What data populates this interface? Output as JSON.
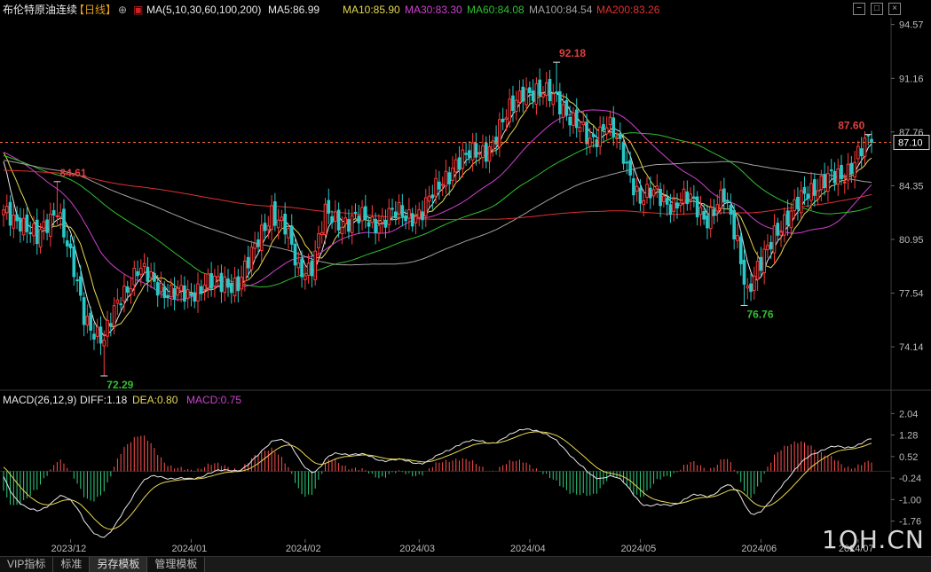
{
  "header": {
    "title": "布伦特原油连续",
    "period": "【日线】",
    "ma_label": "MA(5,10,30,60,100,200)",
    "ma_values": [
      {
        "label": "MA5:86.99",
        "color": "#e8e8e8"
      },
      {
        "label": "MA10:85.90",
        "color": "#e8d850"
      },
      {
        "label": "MA30:83.30",
        "color": "#d040d0"
      },
      {
        "label": "MA60:84.08",
        "color": "#30c030"
      },
      {
        "label": "MA100:84.54",
        "color": "#a0a0a0"
      },
      {
        "label": "MA200:83.26",
        "color": "#e03030"
      }
    ]
  },
  "macd_header": {
    "label": "MACD(26,12,9)",
    "diff": "DIFF:1.18",
    "dea": "DEA:0.80",
    "macd": "MACD:0.75"
  },
  "tabs": [
    {
      "label": "VIP指标",
      "active": false
    },
    {
      "label": "标准",
      "active": false
    },
    {
      "label": "另存模板",
      "active": true
    },
    {
      "label": "管理模板",
      "active": false
    }
  ],
  "watermark": "1QH.CN",
  "chart_data": {
    "type": "candlestick",
    "price_axis": {
      "ticks": [
        94.57,
        91.16,
        87.76,
        84.35,
        80.95,
        77.54,
        74.14
      ],
      "ylim": [
        71.5,
        95.0
      ],
      "current_price": 87.1
    },
    "macd_axis": {
      "ticks": [
        2.04,
        1.28,
        0.52,
        -0.24,
        -1.0,
        -1.76
      ],
      "ylim": [
        -2.4,
        2.3
      ]
    },
    "x_labels": [
      "2023/12",
      "2024/01",
      "2024/02",
      "2024/03",
      "2024/04",
      "2024/05",
      "2024/06",
      "2024/07"
    ],
    "annotations": [
      {
        "text": "84.61",
        "value": 84.61,
        "bar": 16,
        "color": "#e04040"
      },
      {
        "text": "72.29",
        "value": 72.29,
        "bar": 30,
        "color": "#30c030"
      },
      {
        "text": "92.18",
        "value": 92.18,
        "bar": 165,
        "color": "#e04040"
      },
      {
        "text": "76.76",
        "value": 76.76,
        "bar": 221,
        "color": "#30c030"
      },
      {
        "text": "87.60",
        "value": 87.6,
        "bar": 258,
        "color": "#e04040"
      }
    ],
    "anchors": [
      [
        0,
        82.5
      ],
      [
        5,
        82.3
      ],
      [
        10,
        80.8
      ],
      [
        16,
        83.2
      ],
      [
        20,
        79.6
      ],
      [
        24,
        76.2
      ],
      [
        30,
        74.4
      ],
      [
        35,
        77.5
      ],
      [
        40,
        79.0
      ],
      [
        45,
        78.2
      ],
      [
        50,
        77.6
      ],
      [
        55,
        77.2
      ],
      [
        60,
        78.4
      ],
      [
        65,
        77.9
      ],
      [
        70,
        78.4
      ],
      [
        75,
        80.2
      ],
      [
        80,
        82.9
      ],
      [
        84,
        81.6
      ],
      [
        88,
        78.9
      ],
      [
        92,
        79.4
      ],
      [
        96,
        82.4
      ],
      [
        100,
        82.1
      ],
      [
        105,
        82.3
      ],
      [
        110,
        81.9
      ],
      [
        115,
        82.6
      ],
      [
        120,
        82.3
      ],
      [
        125,
        82.9
      ],
      [
        130,
        84.2
      ],
      [
        135,
        86.0
      ],
      [
        140,
        86.2
      ],
      [
        145,
        86.9
      ],
      [
        150,
        88.6
      ],
      [
        155,
        90.6
      ],
      [
        160,
        90.0
      ],
      [
        165,
        90.2
      ],
      [
        170,
        88.2
      ],
      [
        175,
        87.3
      ],
      [
        180,
        88.3
      ],
      [
        185,
        86.3
      ],
      [
        190,
        83.5
      ],
      [
        195,
        83.8
      ],
      [
        200,
        83.2
      ],
      [
        205,
        83.4
      ],
      [
        210,
        82.4
      ],
      [
        215,
        83.5
      ],
      [
        219,
        81.0
      ],
      [
        222,
        77.6
      ],
      [
        226,
        79.2
      ],
      [
        230,
        81.6
      ],
      [
        235,
        82.4
      ],
      [
        240,
        84.2
      ],
      [
        245,
        84.6
      ],
      [
        250,
        84.9
      ],
      [
        255,
        86.4
      ],
      [
        259,
        87.2
      ]
    ]
  }
}
